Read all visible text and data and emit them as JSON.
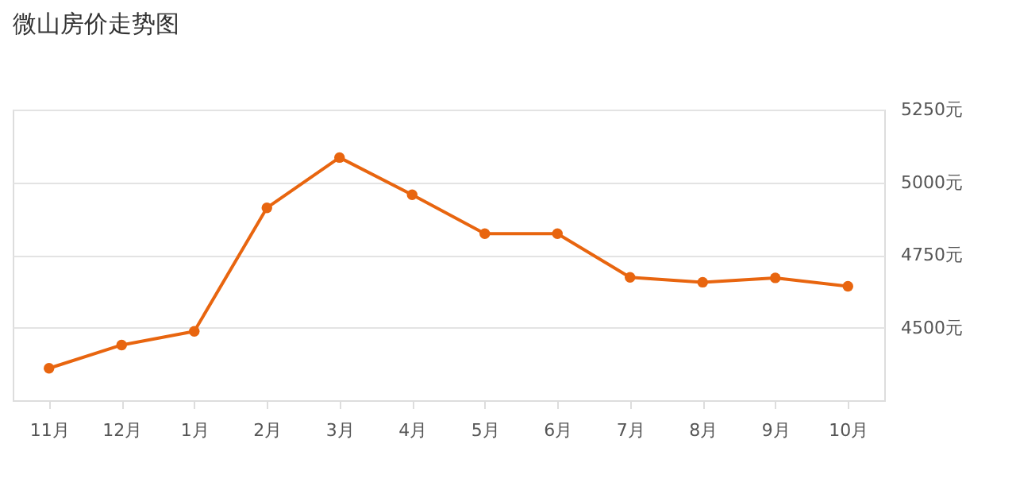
{
  "chart_data": {
    "type": "line",
    "title": "微山房价走势图",
    "categories": [
      "11月",
      "12月",
      "1月",
      "2月",
      "3月",
      "4月",
      "5月",
      "6月",
      "7月",
      "8月",
      "9月",
      "10月"
    ],
    "series": [
      {
        "color": "#e8650f",
        "values": [
          4360,
          4440,
          4487,
          4912,
          5085,
          4957,
          4823,
          4823,
          4673,
          4656,
          4671,
          4642
        ]
      }
    ],
    "ylim": [
      4250,
      5250
    ],
    "yticks": [
      {
        "value": 4500,
        "label": "4500元"
      },
      {
        "value": 4750,
        "label": "4750元"
      },
      {
        "value": 5000,
        "label": "5000元"
      },
      {
        "value": 5250,
        "label": "5250元"
      }
    ],
    "grid": "y",
    "marker": "circle",
    "line_style": "solid"
  }
}
